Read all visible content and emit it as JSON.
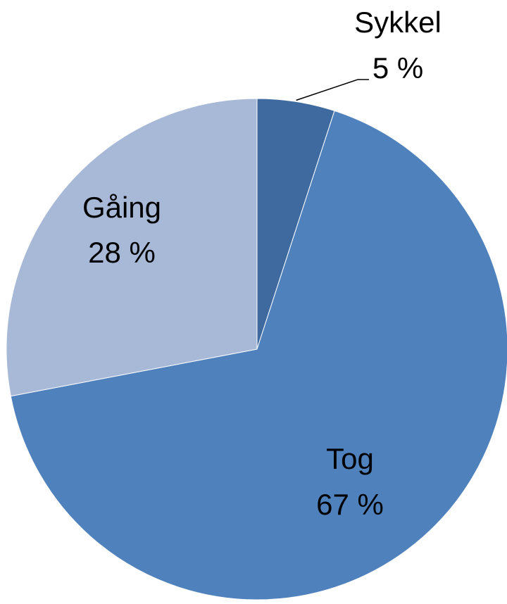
{
  "chart_data": {
    "type": "pie",
    "categories": [
      "Sykkel",
      "Tog",
      "Gåing"
    ],
    "values": [
      5,
      67,
      28
    ],
    "value_labels": [
      "5 %",
      "67 %",
      "28 %"
    ],
    "colors": [
      "#3e6a9f",
      "#4f81bd",
      "#a8b9d8"
    ]
  }
}
